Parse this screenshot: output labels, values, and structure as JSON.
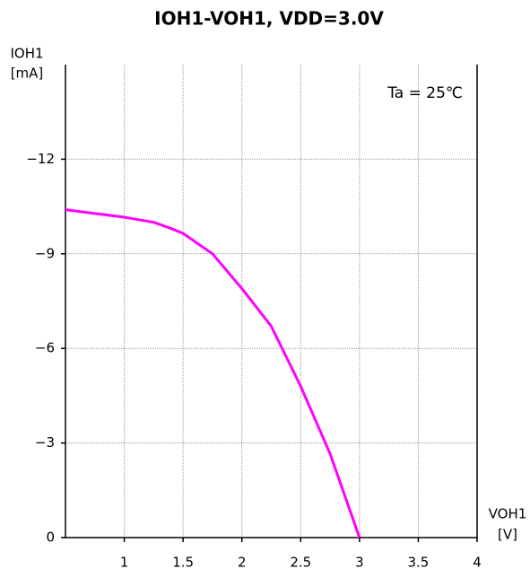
{
  "chart_data": {
    "type": "line",
    "title": "IOH1-VOH1, VDD=3.0V",
    "y_label": [
      "IOH1",
      "[mA]"
    ],
    "x_label": [
      "VOH1",
      "[V]"
    ],
    "annotation": "Ta = 25℃",
    "x": [
      0.5,
      0.75,
      1,
      1.25,
      1.4,
      1.5,
      1.75,
      2,
      2.25,
      2.5,
      2.75,
      3
    ],
    "series": [
      {
        "name": "IOH1",
        "color": "#ff00ff",
        "values": [
          -10.4,
          -10.28,
          -10.16,
          -10.0,
          -9.8,
          -9.65,
          -9.0,
          -7.9,
          -6.7,
          -4.8,
          -2.66,
          0
        ]
      }
    ],
    "xlim": [
      0.5,
      4
    ],
    "xticks": [
      1,
      1.5,
      2,
      2.5,
      3,
      3.5,
      4
    ],
    "ylim": [
      0,
      -15
    ],
    "yticks": [
      0,
      {
        "value": -3,
        "label": "−3"
      },
      {
        "value": -6,
        "label": "−6"
      },
      {
        "value": -9,
        "label": "−9"
      },
      {
        "value": -12,
        "label": "−12"
      }
    ],
    "grid": true
  }
}
